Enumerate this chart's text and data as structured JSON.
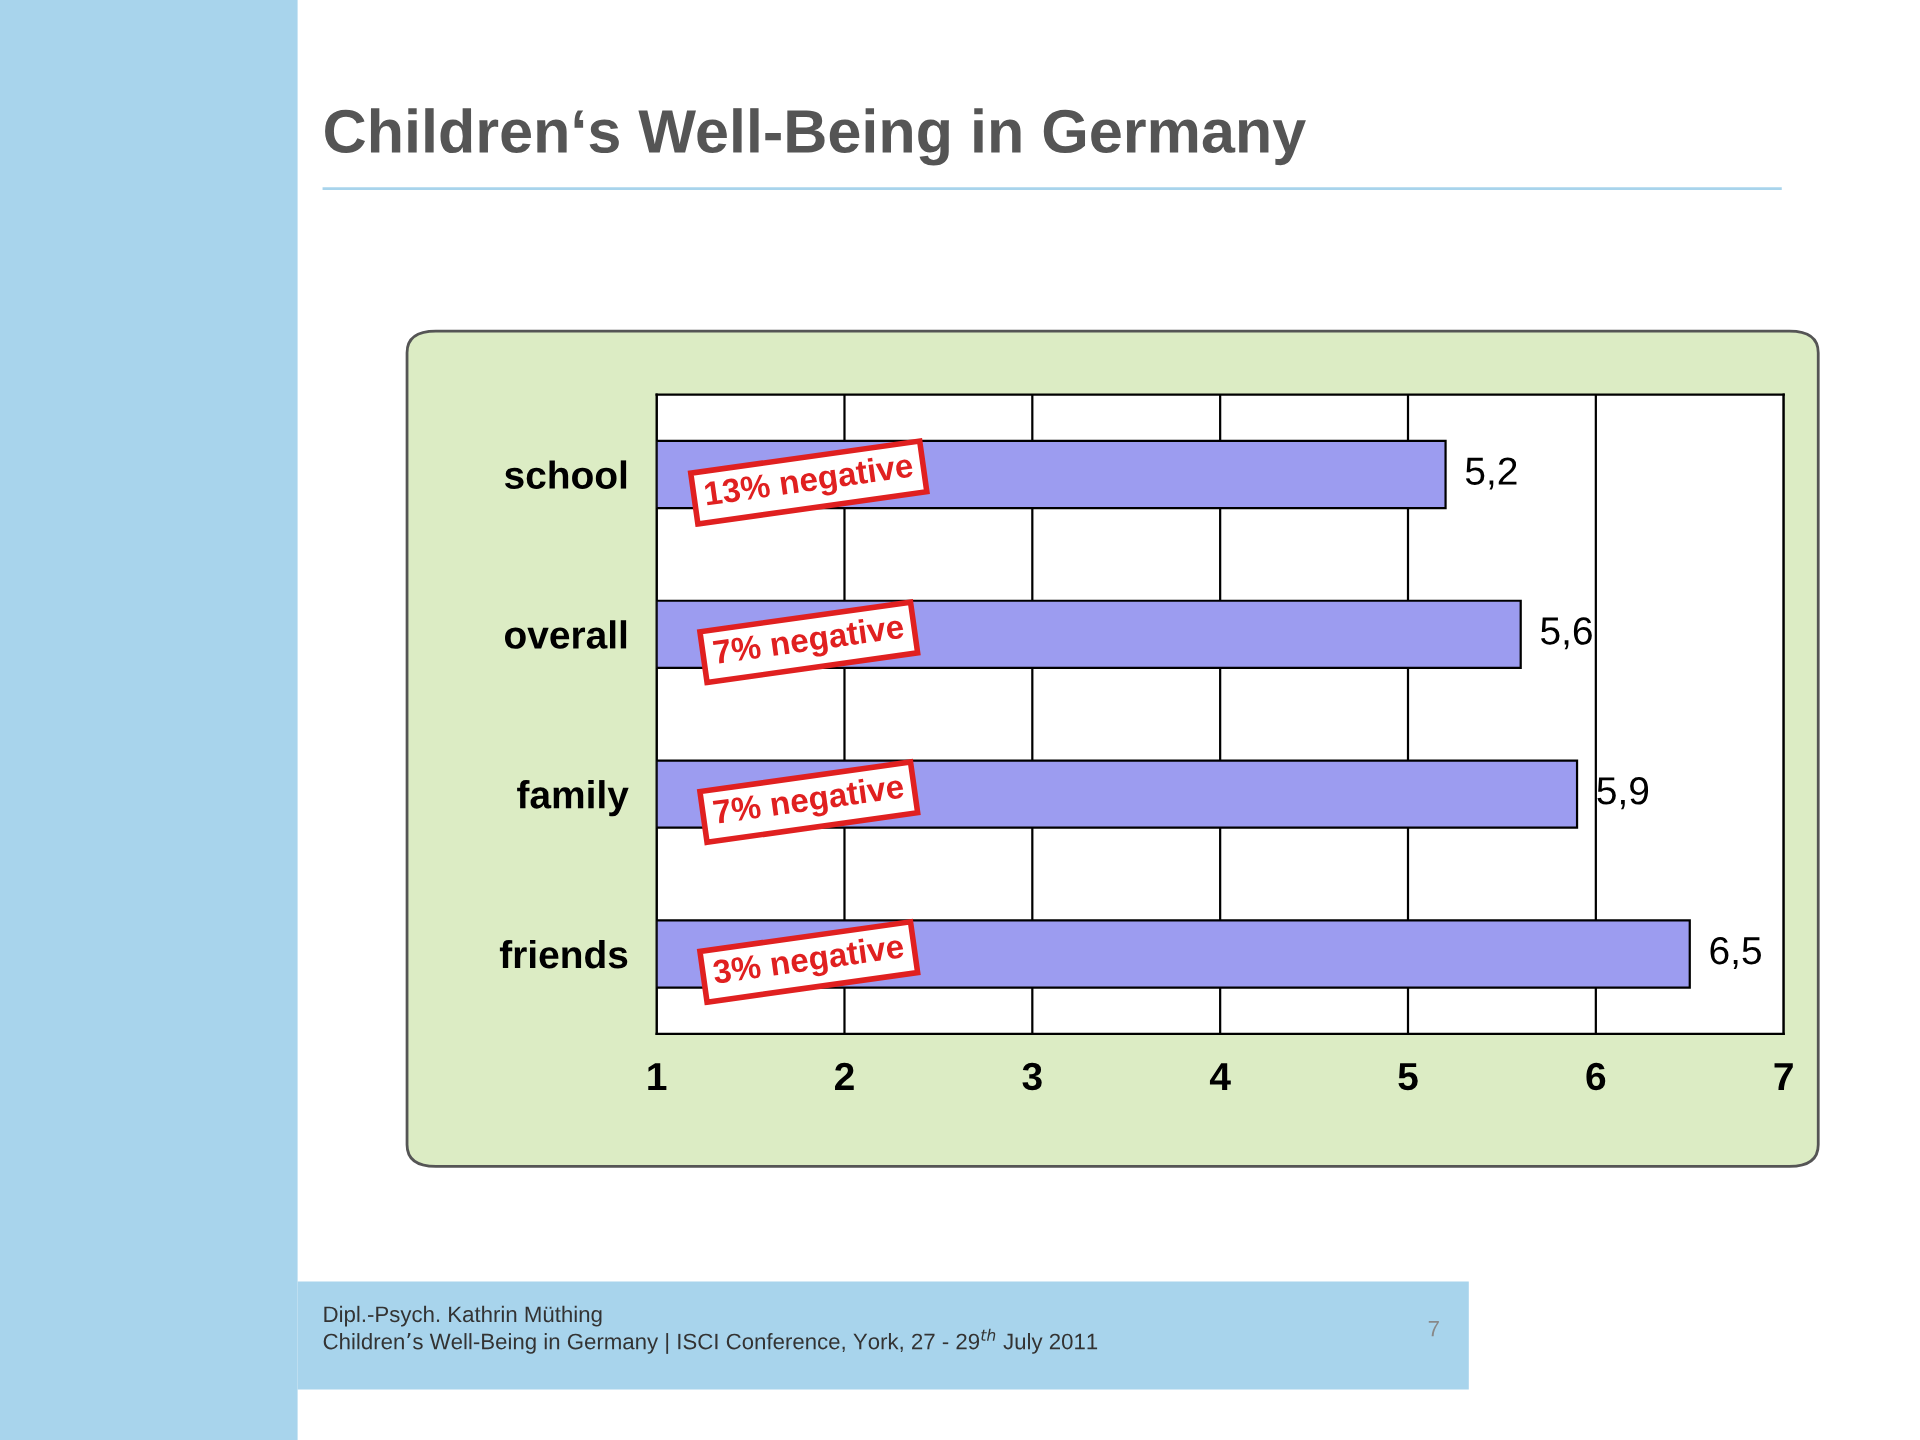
{
  "chart_data": {
    "type": "bar",
    "orientation": "horizontal",
    "title": "Children‘s Well-Being in Germany",
    "categories": [
      "school",
      "overall",
      "family",
      "friends"
    ],
    "values": [
      5.2,
      5.6,
      5.9,
      6.5
    ],
    "color": "#9c9cf0",
    "value_labels": [
      "5,2",
      "5,6",
      "5,9",
      "6,5"
    ],
    "xlim": [
      1,
      7
    ],
    "xticks": [
      1,
      2,
      3,
      4,
      5,
      6,
      7
    ],
    "grid": "x",
    "annotations": [
      "13% negative",
      "7% negative",
      "7% negative",
      "3% negative",
      "Dipl.-Psych. Kathrin Müthing",
      "Children’s Well-Being in Germany | ISCI Conference, York, 27 - 29$^{th}$ July 2011",
      "7"
    ]
  }
}
